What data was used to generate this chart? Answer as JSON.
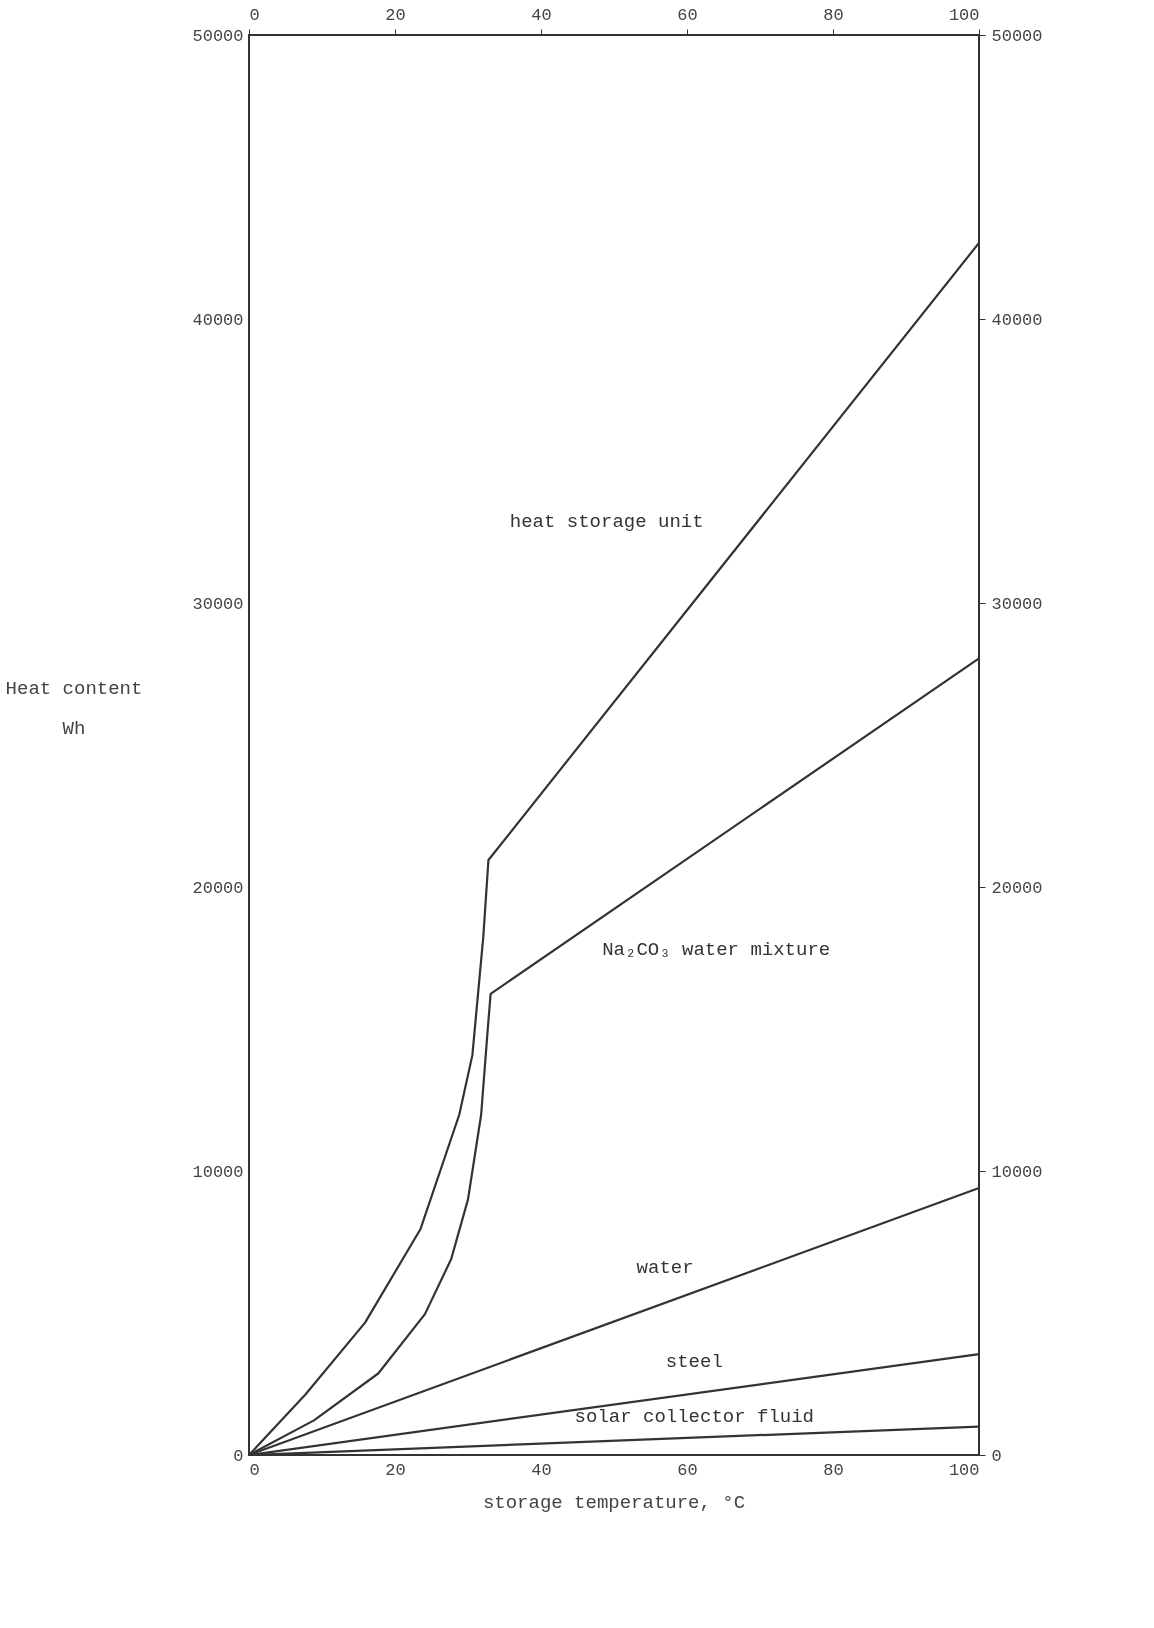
{
  "chart_data": {
    "type": "line",
    "xlabel": "storage temperature, °C",
    "ylabel": "Heat content\nWh",
    "xlim": [
      0,
      100
    ],
    "xticks": [
      0,
      20,
      40,
      60,
      80,
      100
    ],
    "ylim": [
      0,
      50000
    ],
    "yticks": [
      0,
      10000,
      20000,
      30000,
      40000,
      50000
    ],
    "x2lim": [
      0,
      100
    ],
    "x2ticks": [
      0,
      20,
      40,
      60,
      80,
      100
    ],
    "y2lim": [
      0,
      50000
    ],
    "y2ticks": [
      0,
      10000,
      20000,
      30000,
      40000,
      50000
    ],
    "marker": "none",
    "line_style": "solid",
    "series": [
      {
        "name": "heat storage unit",
        "color": "#333333",
        "x": [
          0,
          7.7,
          15.9,
          23.5,
          28.8,
          30.6,
          32.1,
          32.8,
          100
        ],
        "values": [
          0,
          2120,
          4660,
          7960,
          11980,
          14080,
          18260,
          20950,
          42680
        ]
      },
      {
        "name": "Na₂CO₃ water mixture",
        "color": "#333333",
        "x": [
          0,
          8.9,
          17.7,
          24.1,
          27.7,
          30.0,
          31.8,
          32.7,
          33.1,
          100
        ],
        "values": [
          0,
          1220,
          2870,
          4960,
          6900,
          9000,
          11980,
          14980,
          16240,
          28050
        ]
      },
      {
        "name": "water",
        "color": "#333333",
        "x": [
          0,
          100
        ],
        "values": [
          0,
          9400
        ]
      },
      {
        "name": "steel",
        "color": "#333333",
        "x": [
          0,
          100
        ],
        "values": [
          0,
          3550
        ]
      },
      {
        "name": "solar collector fluid",
        "color": "#333333",
        "x": [
          0,
          100
        ],
        "values": [
          0,
          1000
        ]
      }
    ]
  }
}
